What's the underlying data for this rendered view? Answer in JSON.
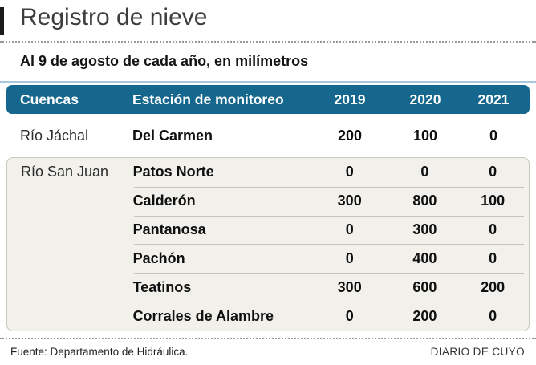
{
  "infographic": {
    "title": "Registro de nieve",
    "subtitle": "Al 9 de agosto de cada año, en milímetros",
    "source": "Fuente: Departamento de Hidráulica.",
    "brand": "DIARIO DE CUYO"
  },
  "colors": {
    "header_bg": "#15678e",
    "block_bg": "#f1f0ea",
    "rule_blue": "#a9c8d9",
    "accent_bar": "#1b1b1b"
  },
  "table": {
    "headers": {
      "cuencas": "Cuencas",
      "station": "Estación de monitoreo",
      "y2019": "2019",
      "y2020": "2020",
      "y2021": "2021"
    },
    "groups": [
      {
        "cuenca": "Río Jáchal",
        "rows": [
          {
            "station": "Del Carmen",
            "values": [
              "200",
              "100",
              "0"
            ]
          }
        ]
      },
      {
        "cuenca": "Río San Juan",
        "rows": [
          {
            "station": "Patos Norte",
            "values": [
              "0",
              "0",
              "0"
            ]
          },
          {
            "station": "Calderón",
            "values": [
              "300",
              "800",
              "100"
            ]
          },
          {
            "station": "Pantanosa",
            "values": [
              "0",
              "300",
              "0"
            ]
          },
          {
            "station": "Pachón",
            "values": [
              "0",
              "400",
              "0"
            ]
          },
          {
            "station": "Teatinos",
            "values": [
              "300",
              "600",
              "200"
            ]
          },
          {
            "station": "Corrales de Alambre",
            "values": [
              "0",
              "200",
              "0"
            ]
          }
        ]
      }
    ]
  },
  "chart_data": {
    "type": "table",
    "title": "Registro de nieve",
    "subtitle": "Al 9 de agosto de cada año, en milímetros",
    "unit": "mm",
    "columns": [
      "Cuencas",
      "Estación de monitoreo",
      "2019",
      "2020",
      "2021"
    ],
    "rows": [
      [
        "Río Jáchal",
        "Del Carmen",
        200,
        100,
        0
      ],
      [
        "Río San Juan",
        "Patos Norte",
        0,
        0,
        0
      ],
      [
        "Río San Juan",
        "Calderón",
        300,
        800,
        100
      ],
      [
        "Río San Juan",
        "Pantanosa",
        0,
        300,
        0
      ],
      [
        "Río San Juan",
        "Pachón",
        0,
        400,
        0
      ],
      [
        "Río San Juan",
        "Teatinos",
        300,
        600,
        200
      ],
      [
        "Río San Juan",
        "Corrales de Alambre",
        0,
        200,
        0
      ]
    ],
    "source": "Fuente: Departamento de Hidráulica.",
    "publisher": "DIARIO DE CUYO"
  }
}
